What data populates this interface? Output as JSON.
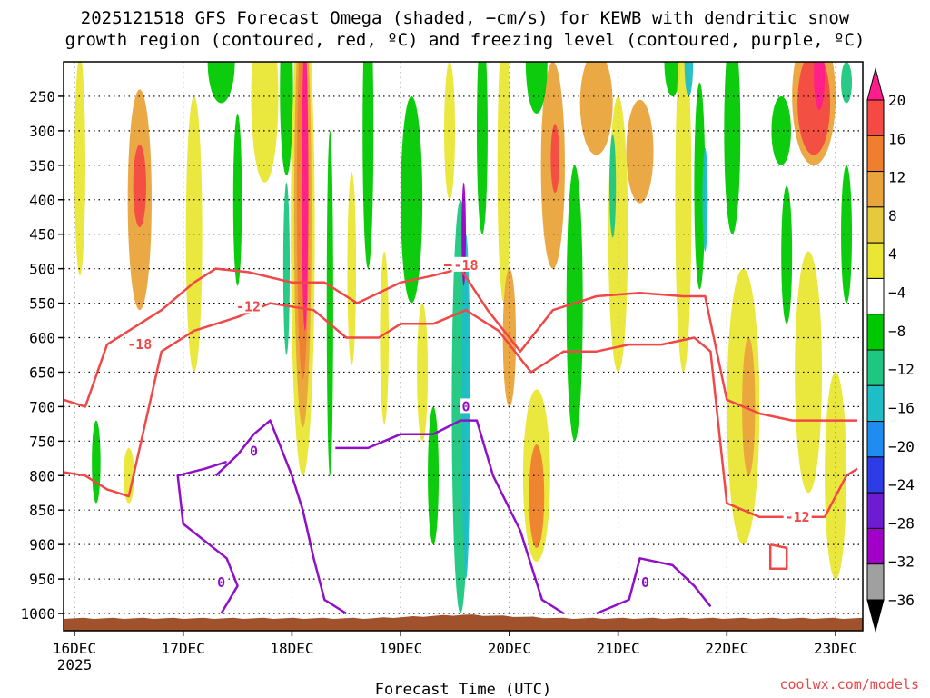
{
  "title": {
    "line1": "2025121518 GFS Forecast Omega (shaded, −cm/s) for KEWB with dendritic snow",
    "line2": "growth region (contoured, red, ºC) and freezing level (contoured, purple, ºC)"
  },
  "credit": "coolwx.com/models",
  "chart_data": {
    "type": "heatmap",
    "xlabel": "Forecast Time (UTC)",
    "ylabel": "",
    "x_ticks": [
      {
        "label": "16DEC",
        "sub": "2025"
      },
      {
        "label": "17DEC",
        "sub": ""
      },
      {
        "label": "18DEC",
        "sub": ""
      },
      {
        "label": "19DEC",
        "sub": ""
      },
      {
        "label": "20DEC",
        "sub": ""
      },
      {
        "label": "21DEC",
        "sub": ""
      },
      {
        "label": "22DEC",
        "sub": ""
      },
      {
        "label": "23DEC",
        "sub": ""
      }
    ],
    "y_ticks": [
      250,
      300,
      350,
      400,
      450,
      500,
      550,
      600,
      650,
      700,
      750,
      800,
      850,
      900,
      950,
      1000
    ],
    "y_range_hPa": [
      200,
      1025
    ],
    "x_range_days": [
      15.9,
      23.25
    ],
    "grid": true,
    "colorbar": {
      "labels": [
        "20",
        "16",
        "12",
        "8",
        "4",
        "−4",
        "−8",
        "−12",
        "−16",
        "−20",
        "−24",
        "−28",
        "−32",
        "−36"
      ],
      "colors": [
        "#ff1d8e",
        "#f44a43",
        "#ef7f2f",
        "#eaa43c",
        "#e7c93d",
        "#e9e634",
        "#ffffff",
        "#00c800",
        "#1ec780",
        "#1ebec6",
        "#1e8cf0",
        "#2d3ce6",
        "#6e1cd2",
        "#a000c8",
        "#a0a0a0",
        "#000000"
      ]
    },
    "omega_cells": [
      {
        "t": 16.6,
        "p": 400,
        "w": 0.22,
        "h": 320,
        "v": 8
      },
      {
        "t": 16.6,
        "p": 380,
        "w": 0.12,
        "h": 120,
        "v": 16
      },
      {
        "t": 16.05,
        "p": 350,
        "w": 0.1,
        "h": 320,
        "v": 4
      },
      {
        "t": 16.2,
        "p": 780,
        "w": 0.08,
        "h": 120,
        "v": -8
      },
      {
        "t": 16.5,
        "p": 800,
        "w": 0.1,
        "h": 80,
        "v": 4
      },
      {
        "t": 17.1,
        "p": 450,
        "w": 0.15,
        "h": 400,
        "v": 4
      },
      {
        "t": 17.35,
        "p": 200,
        "w": 0.25,
        "h": 120,
        "v": -8
      },
      {
        "t": 17.5,
        "p": 400,
        "w": 0.08,
        "h": 250,
        "v": -8
      },
      {
        "t": 17.75,
        "p": 250,
        "w": 0.25,
        "h": 250,
        "v": 4
      },
      {
        "t": 17.95,
        "p": 240,
        "w": 0.12,
        "h": 250,
        "v": -8
      },
      {
        "t": 18.1,
        "p": 450,
        "w": 0.22,
        "h": 700,
        "v": 4
      },
      {
        "t": 18.1,
        "p": 420,
        "w": 0.16,
        "h": 620,
        "v": 8
      },
      {
        "t": 18.1,
        "p": 400,
        "w": 0.11,
        "h": 520,
        "v": 12
      },
      {
        "t": 18.12,
        "p": 380,
        "w": 0.06,
        "h": 420,
        "v": 20
      },
      {
        "t": 17.95,
        "p": 500,
        "w": 0.06,
        "h": 250,
        "v": -12
      },
      {
        "t": 18.35,
        "p": 550,
        "w": 0.06,
        "h": 500,
        "v": -8
      },
      {
        "t": 18.55,
        "p": 500,
        "w": 0.08,
        "h": 280,
        "v": 4
      },
      {
        "t": 18.7,
        "p": 300,
        "w": 0.1,
        "h": 400,
        "v": -8
      },
      {
        "t": 18.85,
        "p": 600,
        "w": 0.08,
        "h": 250,
        "v": 4
      },
      {
        "t": 19.1,
        "p": 400,
        "w": 0.2,
        "h": 300,
        "v": -8
      },
      {
        "t": 19.2,
        "p": 650,
        "w": 0.1,
        "h": 200,
        "v": 4
      },
      {
        "t": 19.3,
        "p": 800,
        "w": 0.1,
        "h": 200,
        "v": -8
      },
      {
        "t": 19.45,
        "p": 300,
        "w": 0.1,
        "h": 200,
        "v": 4
      },
      {
        "t": 19.55,
        "p": 700,
        "w": 0.16,
        "h": 600,
        "v": -12
      },
      {
        "t": 19.6,
        "p": 700,
        "w": 0.08,
        "h": 500,
        "v": -16
      },
      {
        "t": 19.58,
        "p": 450,
        "w": 0.04,
        "h": 150,
        "v": -28
      },
      {
        "t": 19.75,
        "p": 300,
        "w": 0.1,
        "h": 300,
        "v": -8
      },
      {
        "t": 19.95,
        "p": 350,
        "w": 0.12,
        "h": 400,
        "v": 4
      },
      {
        "t": 20.0,
        "p": 600,
        "w": 0.12,
        "h": 200,
        "v": 8
      },
      {
        "t": 20.25,
        "p": 800,
        "w": 0.25,
        "h": 250,
        "v": 4
      },
      {
        "t": 20.25,
        "p": 830,
        "w": 0.14,
        "h": 150,
        "v": 12
      },
      {
        "t": 20.4,
        "p": 350,
        "w": 0.22,
        "h": 300,
        "v": 8
      },
      {
        "t": 20.42,
        "p": 340,
        "w": 0.08,
        "h": 100,
        "v": 16
      },
      {
        "t": 20.25,
        "p": 200,
        "w": 0.2,
        "h": 150,
        "v": -8
      },
      {
        "t": 20.6,
        "p": 550,
        "w": 0.15,
        "h": 400,
        "v": -8
      },
      {
        "t": 20.8,
        "p": 260,
        "w": 0.3,
        "h": 150,
        "v": 8
      },
      {
        "t": 21.0,
        "p": 450,
        "w": 0.18,
        "h": 400,
        "v": 4
      },
      {
        "t": 20.95,
        "p": 380,
        "w": 0.06,
        "h": 150,
        "v": -12
      },
      {
        "t": 21.2,
        "p": 330,
        "w": 0.25,
        "h": 150,
        "v": 8
      },
      {
        "t": 21.5,
        "p": 200,
        "w": 0.15,
        "h": 100,
        "v": -8
      },
      {
        "t": 21.6,
        "p": 400,
        "w": 0.15,
        "h": 500,
        "v": 4
      },
      {
        "t": 21.75,
        "p": 380,
        "w": 0.1,
        "h": 300,
        "v": -8
      },
      {
        "t": 21.8,
        "p": 400,
        "w": 0.05,
        "h": 150,
        "v": -16
      },
      {
        "t": 21.65,
        "p": 200,
        "w": 0.08,
        "h": 100,
        "v": -16
      },
      {
        "t": 22.05,
        "p": 300,
        "w": 0.15,
        "h": 300,
        "v": -8
      },
      {
        "t": 22.15,
        "p": 700,
        "w": 0.3,
        "h": 400,
        "v": 4
      },
      {
        "t": 22.2,
        "p": 700,
        "w": 0.12,
        "h": 200,
        "v": 8
      },
      {
        "t": 22.5,
        "p": 300,
        "w": 0.18,
        "h": 100,
        "v": -8
      },
      {
        "t": 22.8,
        "p": 250,
        "w": 0.4,
        "h": 200,
        "v": 8
      },
      {
        "t": 22.8,
        "p": 260,
        "w": 0.3,
        "h": 150,
        "v": 16
      },
      {
        "t": 22.85,
        "p": 220,
        "w": 0.1,
        "h": 100,
        "v": 20
      },
      {
        "t": 22.55,
        "p": 480,
        "w": 0.1,
        "h": 200,
        "v": -8
      },
      {
        "t": 22.75,
        "p": 650,
        "w": 0.25,
        "h": 350,
        "v": 4
      },
      {
        "t": 23.0,
        "p": 800,
        "w": 0.2,
        "h": 300,
        "v": 4
      },
      {
        "t": 23.1,
        "p": 450,
        "w": 0.1,
        "h": 200,
        "v": -8
      },
      {
        "t": 23.1,
        "p": 230,
        "w": 0.1,
        "h": 60,
        "v": -12
      }
    ],
    "contours_dendritic_red": [
      {
        "label": "-12",
        "label_at": {
          "t": 17.6,
          "p": 555
        },
        "points": [
          [
            15.9,
            795
          ],
          [
            16.1,
            800
          ],
          [
            16.3,
            820
          ],
          [
            16.5,
            830
          ],
          [
            16.8,
            620
          ],
          [
            17.1,
            590
          ],
          [
            17.5,
            570
          ],
          [
            17.8,
            550
          ],
          [
            18.2,
            560
          ],
          [
            18.5,
            600
          ],
          [
            18.8,
            600
          ],
          [
            19.0,
            580
          ],
          [
            19.3,
            580
          ],
          [
            19.6,
            560
          ],
          [
            19.9,
            590
          ],
          [
            20.2,
            650
          ],
          [
            20.5,
            620
          ],
          [
            20.8,
            620
          ],
          [
            21.1,
            610
          ],
          [
            21.4,
            610
          ],
          [
            21.7,
            600
          ],
          [
            21.85,
            620
          ],
          [
            22.0,
            840
          ],
          [
            22.3,
            860
          ],
          [
            22.6,
            860
          ],
          [
            22.9,
            860
          ],
          [
            23.1,
            800
          ],
          [
            23.2,
            790
          ]
        ]
      },
      {
        "label": "-18",
        "label_at": {
          "t": 16.6,
          "p": 610
        },
        "points": [
          [
            15.9,
            690
          ],
          [
            16.1,
            700
          ],
          [
            16.3,
            610
          ],
          [
            16.5,
            590
          ],
          [
            16.8,
            560
          ],
          [
            17.1,
            520
          ],
          [
            17.3,
            500
          ],
          [
            17.6,
            505
          ],
          [
            18.0,
            520
          ],
          [
            18.3,
            520
          ],
          [
            18.6,
            550
          ],
          [
            19.0,
            520
          ],
          [
            19.3,
            510
          ],
          [
            19.55,
            500
          ],
          [
            19.8,
            560
          ],
          [
            20.1,
            620
          ],
          [
            20.4,
            560
          ],
          [
            20.8,
            540
          ],
          [
            21.2,
            535
          ],
          [
            21.6,
            540
          ],
          [
            21.8,
            540
          ],
          [
            22.0,
            690
          ],
          [
            22.3,
            710
          ],
          [
            22.6,
            720
          ],
          [
            22.9,
            720
          ],
          [
            23.2,
            720
          ]
        ]
      },
      {
        "label": "-18",
        "label_at": {
          "t": 19.6,
          "p": 495
        },
        "points": [
          [
            19.4,
            495
          ],
          [
            19.6,
            495
          ]
        ]
      },
      {
        "label": "-12",
        "label_at": {
          "t": 22.65,
          "p": 860
        },
        "points": [
          [
            22.4,
            900
          ],
          [
            22.55,
            905
          ],
          [
            22.55,
            935
          ],
          [
            22.4,
            935
          ],
          [
            22.4,
            900
          ]
        ]
      }
    ],
    "contours_freezing_purple": [
      {
        "label": "0",
        "label_at": {
          "t": 17.65,
          "p": 765
        },
        "points": [
          [
            17.3,
            800
          ],
          [
            17.5,
            770
          ],
          [
            17.65,
            740
          ],
          [
            17.8,
            720
          ],
          [
            18.0,
            800
          ],
          [
            18.1,
            850
          ],
          [
            18.2,
            920
          ],
          [
            18.3,
            980
          ],
          [
            18.5,
            1000
          ]
        ]
      },
      {
        "label": "0",
        "label_at": {
          "t": 17.35,
          "p": 955
        },
        "points": [
          [
            17.35,
            1000
          ],
          [
            17.5,
            960
          ],
          [
            17.4,
            920
          ],
          [
            17.0,
            870
          ],
          [
            16.95,
            800
          ],
          [
            17.2,
            790
          ],
          [
            17.4,
            780
          ]
        ]
      },
      {
        "label": "0",
        "label_at": {
          "t": 19.6,
          "p": 700
        },
        "points": [
          [
            18.4,
            760
          ],
          [
            18.7,
            760
          ],
          [
            19.0,
            740
          ],
          [
            19.3,
            740
          ],
          [
            19.55,
            720
          ],
          [
            19.7,
            720
          ],
          [
            19.85,
            800
          ],
          [
            20.1,
            880
          ],
          [
            20.3,
            980
          ],
          [
            20.5,
            1000
          ]
        ]
      },
      {
        "label": "0",
        "label_at": {
          "t": 21.25,
          "p": 955
        },
        "points": [
          [
            20.8,
            1000
          ],
          [
            21.1,
            980
          ],
          [
            21.2,
            920
          ],
          [
            21.5,
            930
          ],
          [
            21.7,
            960
          ],
          [
            21.85,
            990
          ]
        ]
      }
    ]
  }
}
